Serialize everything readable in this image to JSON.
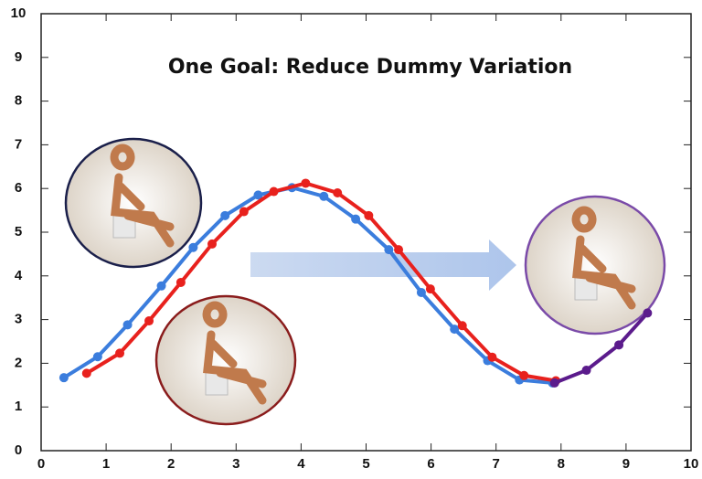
{
  "chart_data": {
    "type": "line",
    "title": "One Goal: Reduce Dummy Variation",
    "xlim": [
      0,
      10
    ],
    "ylim": [
      0,
      10
    ],
    "xticks": [
      0,
      1,
      2,
      3,
      4,
      5,
      6,
      7,
      8,
      9,
      10
    ],
    "yticks": [
      0,
      1,
      2,
      3,
      4,
      5,
      6,
      7,
      8,
      9,
      10
    ],
    "series": [
      {
        "color": "#3b7ddd",
        "x": [
          0.35,
          0.87,
          1.33,
          1.85,
          2.34,
          2.83,
          3.34,
          3.86,
          4.35,
          4.84,
          5.35,
          5.85,
          6.36,
          6.87,
          7.36,
          7.87
        ],
        "values": [
          1.67,
          2.15,
          2.88,
          3.77,
          4.65,
          5.38,
          5.85,
          6.02,
          5.82,
          5.3,
          4.6,
          3.62,
          2.78,
          2.06,
          1.62,
          1.55
        ]
      },
      {
        "color": "#e8211d",
        "x": [
          0.7,
          1.21,
          1.66,
          2.15,
          2.63,
          3.12,
          3.58,
          4.07,
          4.56,
          5.04,
          5.5,
          5.99,
          6.48,
          6.94,
          7.43,
          7.92
        ],
        "values": [
          1.77,
          2.23,
          2.97,
          3.85,
          4.73,
          5.47,
          5.93,
          6.12,
          5.9,
          5.38,
          4.6,
          3.7,
          2.86,
          2.14,
          1.72,
          1.6
        ]
      },
      {
        "color": "#5b1b8c",
        "x": [
          7.9,
          8.39,
          8.89,
          9.33
        ],
        "values": [
          1.55,
          1.84,
          2.42,
          3.15
        ]
      }
    ]
  }
}
